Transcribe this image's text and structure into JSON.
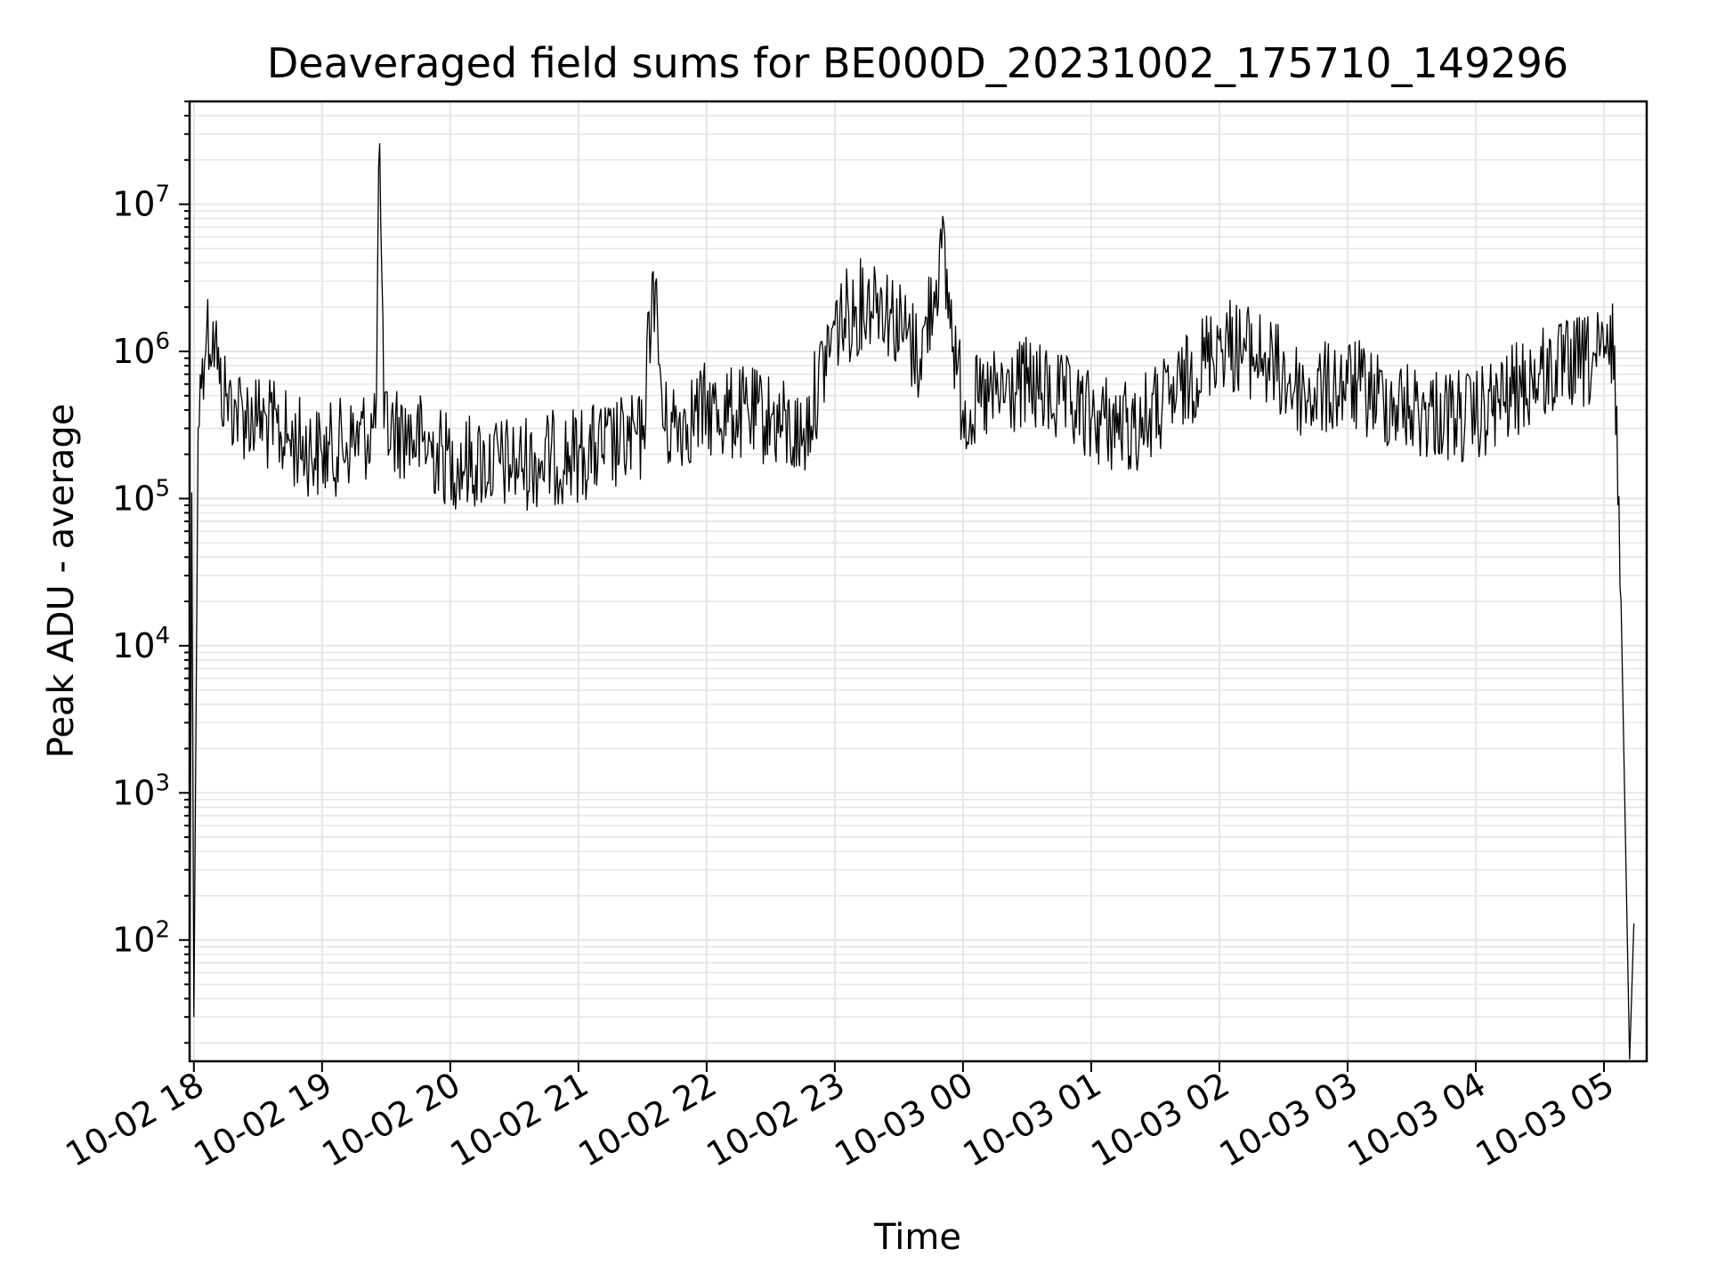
{
  "chart_data": {
    "type": "line",
    "title": "Deaveraged field sums for BE000D_20231002_175710_149296",
    "xlabel": "Time",
    "ylabel": "Peak ADU - average",
    "y_scale": "log",
    "grid": true,
    "line_color": "#000000",
    "grid_color": "#e6e6e6",
    "xlim": [
      "2023-10-02 17:58",
      "2023-10-03 05:20"
    ],
    "ylim": [
      15,
      50000000
    ],
    "x_ticks": [
      "10-02 18",
      "10-02 19",
      "10-02 20",
      "10-02 21",
      "10-02 22",
      "10-02 23",
      "10-03 00",
      "10-03 01",
      "10-03 02",
      "10-03 03",
      "10-03 04",
      "10-03 05"
    ],
    "x_tick_times": [
      "2023-10-02 18:00",
      "2023-10-02 19:00",
      "2023-10-02 20:00",
      "2023-10-02 21:00",
      "2023-10-02 22:00",
      "2023-10-02 23:00",
      "2023-10-03 00:00",
      "2023-10-03 01:00",
      "2023-10-03 02:00",
      "2023-10-03 03:00",
      "2023-10-03 04:00",
      "2023-10-03 05:00"
    ],
    "y_ticks": [
      {
        "value": 100,
        "base": "10",
        "exp": "2"
      },
      {
        "value": 1000,
        "base": "10",
        "exp": "3"
      },
      {
        "value": 10000,
        "base": "10",
        "exp": "4"
      },
      {
        "value": 100000,
        "base": "10",
        "exp": "5"
      },
      {
        "value": 1000000,
        "base": "10",
        "exp": "6"
      },
      {
        "value": 10000000,
        "base": "10",
        "exp": "7"
      }
    ],
    "series": [
      {
        "x": [
          "2023-10-02 17:58",
          "2023-10-02 17:59",
          "2023-10-02 18:00",
          "2023-10-02 18:02",
          "2023-10-02 18:04",
          "2023-10-02 18:06",
          "2023-10-02 18:10",
          "2023-10-02 18:12",
          "2023-10-02 18:15",
          "2023-10-02 18:20",
          "2023-10-02 18:30",
          "2023-10-02 18:45",
          "2023-10-02 19:00",
          "2023-10-02 19:15",
          "2023-10-02 19:25",
          "2023-10-02 19:27",
          "2023-10-02 19:29",
          "2023-10-02 19:40",
          "2023-10-02 20:00",
          "2023-10-02 20:30",
          "2023-10-02 21:00",
          "2023-10-02 21:30",
          "2023-10-02 21:35",
          "2023-10-02 21:40",
          "2023-10-02 22:00",
          "2023-10-02 22:30",
          "2023-10-02 22:45",
          "2023-10-02 23:00",
          "2023-10-02 23:20",
          "2023-10-02 23:40",
          "2023-10-02 23:50",
          "2023-10-03 00:00",
          "2023-10-03 00:30",
          "2023-10-03 01:00",
          "2023-10-03 01:20",
          "2023-10-03 01:40",
          "2023-10-03 02:00",
          "2023-10-03 02:20",
          "2023-10-03 02:40",
          "2023-10-03 03:00",
          "2023-10-03 03:30",
          "2023-10-03 04:00",
          "2023-10-03 04:30",
          "2023-10-03 05:00",
          "2023-10-03 05:05",
          "2023-10-03 05:08",
          "2023-10-03 05:12",
          "2023-10-03 05:14"
        ],
        "y": [
          15,
          110000,
          30,
          300000,
          900000,
          1400000,
          1200000,
          600000,
          500000,
          400000,
          350000,
          250000,
          200000,
          250000,
          300000,
          26000000,
          300000,
          280000,
          180000,
          170000,
          200000,
          250000,
          3500000,
          300000,
          400000,
          350000,
          250000,
          1500000,
          2500000,
          900000,
          5000000,
          400000,
          600000,
          350000,
          300000,
          500000,
          1200000,
          900000,
          500000,
          600000,
          400000,
          350000,
          700000,
          900000,
          1100000,
          20000,
          15,
          130
        ]
      }
    ]
  }
}
